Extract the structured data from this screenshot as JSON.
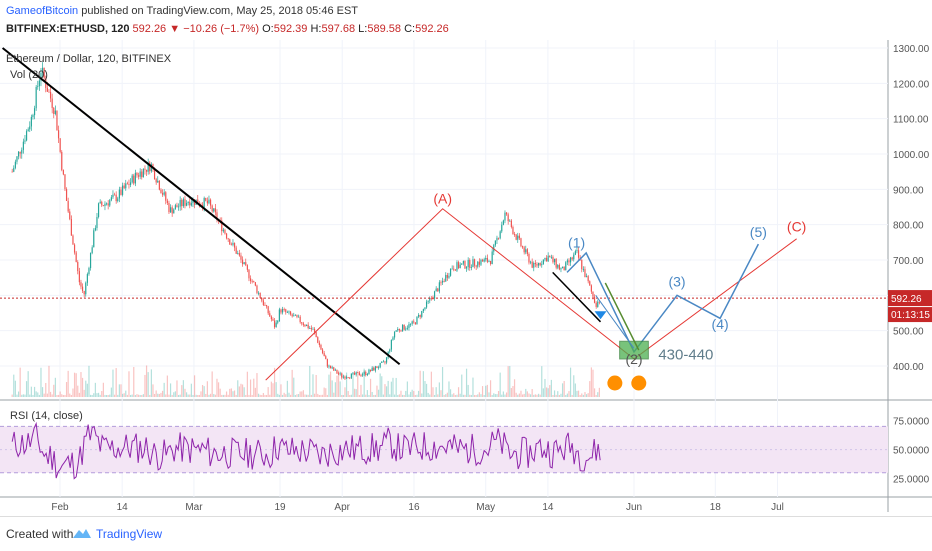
{
  "header": {
    "author": "GameofBitcoin",
    "published": "published on TradingView.com, May 25, 2018 05:46 EST",
    "symbol": "BITFINEX:ETHUSD, 120",
    "last": "592.26",
    "change": "−10.26 (−1.7%)",
    "open_label": "O:",
    "open": "592.39",
    "high_label": "H:",
    "high": "597.68",
    "low_label": "L:",
    "low": "589.58",
    "close_label": "C:",
    "close": "592.26"
  },
  "footer": {
    "created": "Created with",
    "brand": "TradingView"
  },
  "colors": {
    "up": "#26a69a",
    "down": "#ef5350",
    "price": "#c62828",
    "wave_red": "#e53935",
    "wave_blue": "#4a88c4",
    "rsi": "#8e24aa",
    "rsi_band": "#f3e5f5"
  },
  "chart_data": [
    {
      "type": "line",
      "title": "Ethereum / Dollar, 120, BITFINEX",
      "indicator_label": "Vol (20)",
      "x_ticks": [
        "Feb",
        "14",
        "Mar",
        "19",
        "Apr",
        "16",
        "May",
        "14",
        "Jun",
        "18",
        "Jul"
      ],
      "y_ticks": [
        "1300.00",
        "1200.00",
        "1100.00",
        "1000.00",
        "900.00",
        "800.00",
        "700.00",
        "600.00",
        "500.00",
        "400.00"
      ],
      "ylim": [
        330,
        1300
      ],
      "last_price_label": "592.26",
      "countdown_label": "01:13:15",
      "price_path": [
        {
          "x": "Jan 22",
          "y": 950
        },
        {
          "x": "Jan 26",
          "y": 1100
        },
        {
          "x": "Jan 28",
          "y": 1240
        },
        {
          "x": "Jan 31",
          "y": 1120
        },
        {
          "x": "Feb 2",
          "y": 900
        },
        {
          "x": "Feb 5",
          "y": 640
        },
        {
          "x": "Feb 6",
          "y": 600
        },
        {
          "x": "Feb 9",
          "y": 850
        },
        {
          "x": "Feb 13",
          "y": 880
        },
        {
          "x": "Feb 17",
          "y": 940
        },
        {
          "x": "Feb 20",
          "y": 970
        },
        {
          "x": "Feb 24",
          "y": 840
        },
        {
          "x": "Feb 28",
          "y": 870
        },
        {
          "x": "Mar 4",
          "y": 860
        },
        {
          "x": "Mar 10",
          "y": 720
        },
        {
          "x": "Mar 14",
          "y": 620
        },
        {
          "x": "Mar 18",
          "y": 510
        },
        {
          "x": "Mar 19",
          "y": 560
        },
        {
          "x": "Mar 23",
          "y": 530
        },
        {
          "x": "Mar 26",
          "y": 500
        },
        {
          "x": "Mar 29",
          "y": 400
        },
        {
          "x": "Apr 1",
          "y": 370
        },
        {
          "x": "Apr 6",
          "y": 380
        },
        {
          "x": "Apr 10",
          "y": 410
        },
        {
          "x": "Apr 12",
          "y": 500
        },
        {
          "x": "Apr 16",
          "y": 520
        },
        {
          "x": "Apr 20",
          "y": 600
        },
        {
          "x": "Apr 24",
          "y": 680
        },
        {
          "x": "Apr 28",
          "y": 690
        },
        {
          "x": "May 2",
          "y": 700
        },
        {
          "x": "May 5",
          "y": 830
        },
        {
          "x": "May 8",
          "y": 750
        },
        {
          "x": "May 11",
          "y": 680
        },
        {
          "x": "May 14",
          "y": 710
        },
        {
          "x": "May 17",
          "y": 670
        },
        {
          "x": "May 20",
          "y": 720
        },
        {
          "x": "May 22",
          "y": 650
        },
        {
          "x": "May 24",
          "y": 575
        },
        {
          "x": "May 25",
          "y": 592
        }
      ],
      "annotations": {
        "wave_labels": [
          "(A)",
          "(1)",
          "(2)",
          "(3)",
          "(4)",
          "(5)",
          "(C)"
        ],
        "target_label": "430-440",
        "abc_path": [
          {
            "x": "Mar 16",
            "y": 360
          },
          {
            "x": "Apr 22",
            "y": 845
          },
          {
            "x": "Jun 1",
            "y": 420
          },
          {
            "x": "Jul 5",
            "y": 760
          }
        ],
        "impulse_path": [
          {
            "x": "May 18",
            "y": 665
          },
          {
            "x": "May 22",
            "y": 720
          },
          {
            "x": "Jun 1",
            "y": 440
          },
          {
            "x": "Jun 10",
            "y": 600
          },
          {
            "x": "Jun 19",
            "y": 535
          },
          {
            "x": "Jun 27",
            "y": 745
          }
        ],
        "trendline": [
          {
            "x": "Jan 20",
            "y": 1300
          },
          {
            "x": "Apr 13",
            "y": 405
          }
        ]
      }
    },
    {
      "type": "line",
      "title": "RSI (14, close)",
      "y_ticks": [
        "75.0000",
        "50.0000",
        "25.0000"
      ],
      "ylim": [
        10,
        85
      ],
      "overbought": 70,
      "oversold": 30
    }
  ]
}
